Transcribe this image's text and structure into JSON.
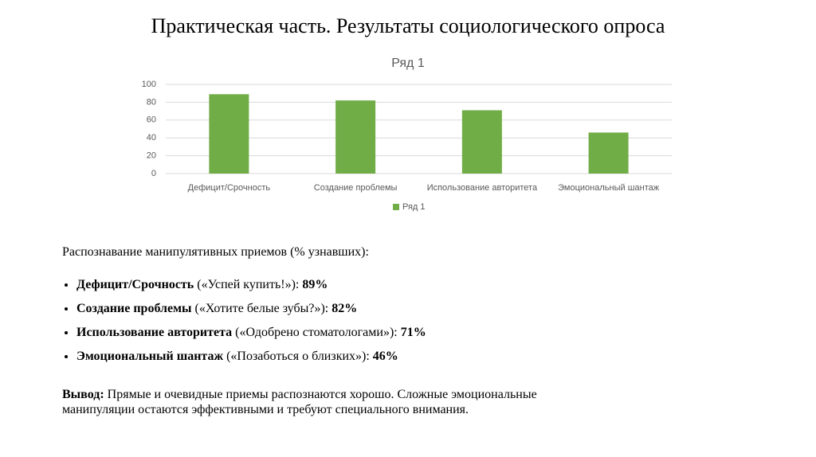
{
  "slide_title": "Практическая часть. Результаты социологического опроса",
  "chart_data": {
    "type": "bar",
    "title": "Ряд 1",
    "categories": [
      "Дефицит/Срочность",
      "Создание проблемы",
      "Использование авторитета",
      "Эмоциональный шантаж"
    ],
    "series": [
      {
        "name": "Ряд 1",
        "color": "#70ad47",
        "values": [
          89,
          82,
          71,
          46
        ]
      }
    ],
    "ylim": [
      0,
      100
    ],
    "yticks": [
      0,
      20,
      40,
      60,
      80,
      100
    ],
    "grid": true,
    "legend": "bottom"
  },
  "body": {
    "heading": "Распознавание манипулятивных приемов (% узнавших):",
    "items": [
      {
        "term": "Дефицит/Срочность",
        "example": "(«Успей купить!»):",
        "value": "89%"
      },
      {
        "term": "Создание проблемы",
        "example": "(«Хотите белые зубы?»):",
        "value": "82%"
      },
      {
        "term": "Использование авторитета",
        "example": "(«Одобрено стоматологами»):",
        "value": "71%"
      },
      {
        "term": "Эмоциональный шантаж",
        "example": "(«Позаботься о близких»):",
        "value": "46%"
      }
    ],
    "conclusion": {
      "label": "Вывод:",
      "lines": [
        "Прямые и очевидные приемы распознаются хорошо. Сложные эмоциональные",
        "манипуляции остаются эффективными и требуют специального внимания."
      ]
    }
  }
}
